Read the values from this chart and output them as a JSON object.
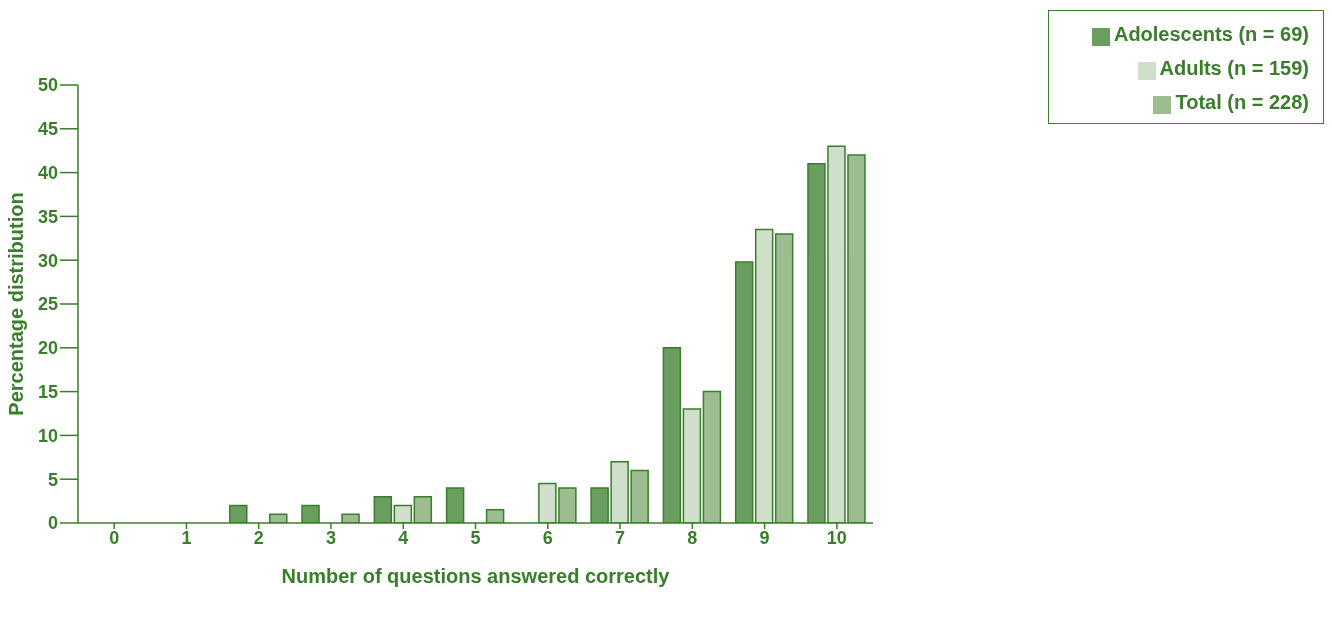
{
  "chart_data": {
    "type": "bar",
    "xlabel": "Number of questions answered correctly",
    "ylabel": "Percentage distribution",
    "categories": [
      "0",
      "1",
      "2",
      "3",
      "4",
      "5",
      "6",
      "7",
      "8",
      "9",
      "10"
    ],
    "series": [
      {
        "name": "Adolescents (n = 69)",
        "color": "#6a9e5f",
        "values": [
          0,
          0,
          2,
          2,
          3,
          4,
          0,
          4,
          20,
          29.8,
          41
        ]
      },
      {
        "name": "Adults (n = 159)",
        "color": "#cfdfca",
        "values": [
          0,
          0,
          0,
          0,
          2,
          0,
          4.5,
          7,
          13,
          33.5,
          43
        ]
      },
      {
        "name": "Total (n = 228)",
        "color": "#9dbd91",
        "values": [
          0,
          0,
          1,
          1,
          3,
          1.5,
          4,
          6,
          15,
          33,
          42
        ]
      }
    ],
    "ylim": [
      0,
      50
    ],
    "yticks": [
      0,
      5,
      10,
      15,
      20,
      25,
      30,
      35,
      40,
      45,
      50
    ],
    "legend": "top right"
  }
}
